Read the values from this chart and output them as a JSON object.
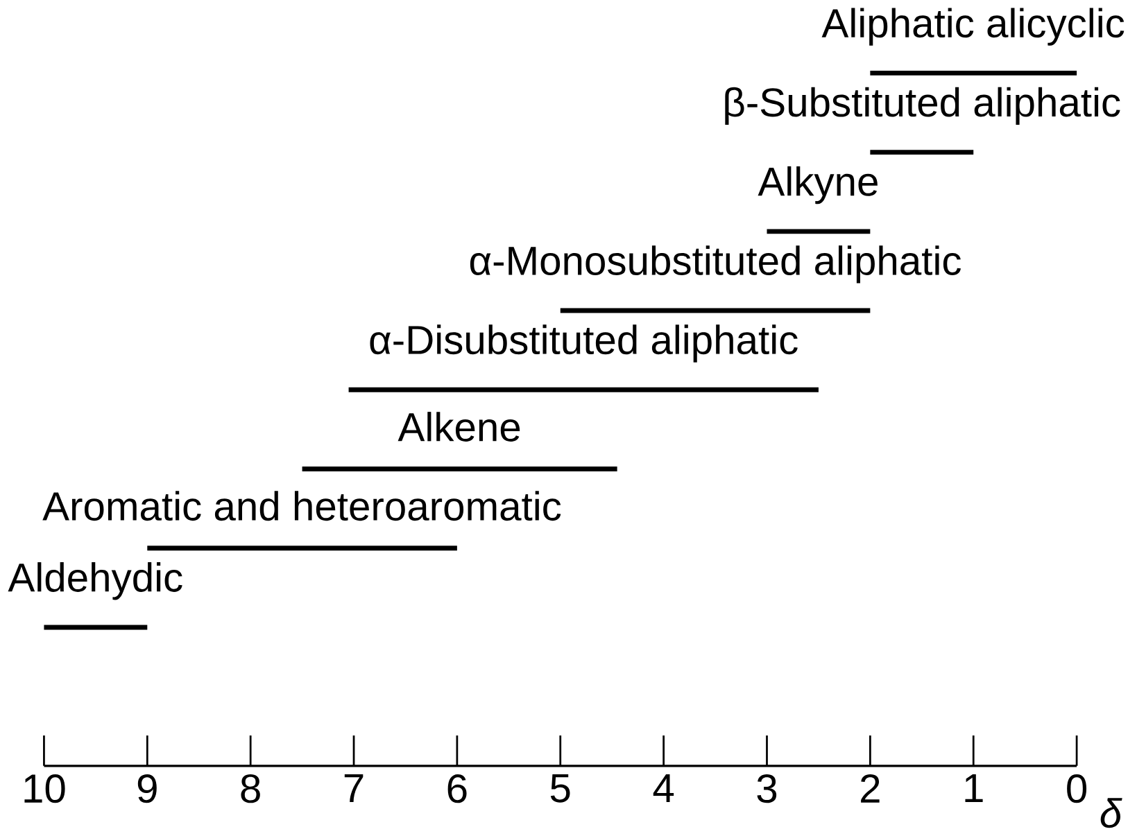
{
  "chart_data": {
    "type": "bar",
    "orientation": "horizontal",
    "xlabel": "δ",
    "categories": [
      "Aliphatic alicyclic",
      "β-Substituted aliphatic",
      "Alkyne",
      "α-Monosubstituted aliphatic",
      "α-Disubstituted aliphatic",
      "Alkene",
      "Aromatic and heteroaromatic",
      "Aldehydic"
    ],
    "base": [
      0,
      1,
      2,
      2,
      2.5,
      4.45,
      6,
      9
    ],
    "values": [
      2,
      1,
      1,
      3,
      4.55,
      3.05,
      3,
      1
    ],
    "color": "#000000",
    "xlim": [
      10,
      0
    ],
    "xticks": [
      10,
      9,
      8,
      7,
      6,
      5,
      4,
      3,
      2,
      1,
      0
    ]
  }
}
